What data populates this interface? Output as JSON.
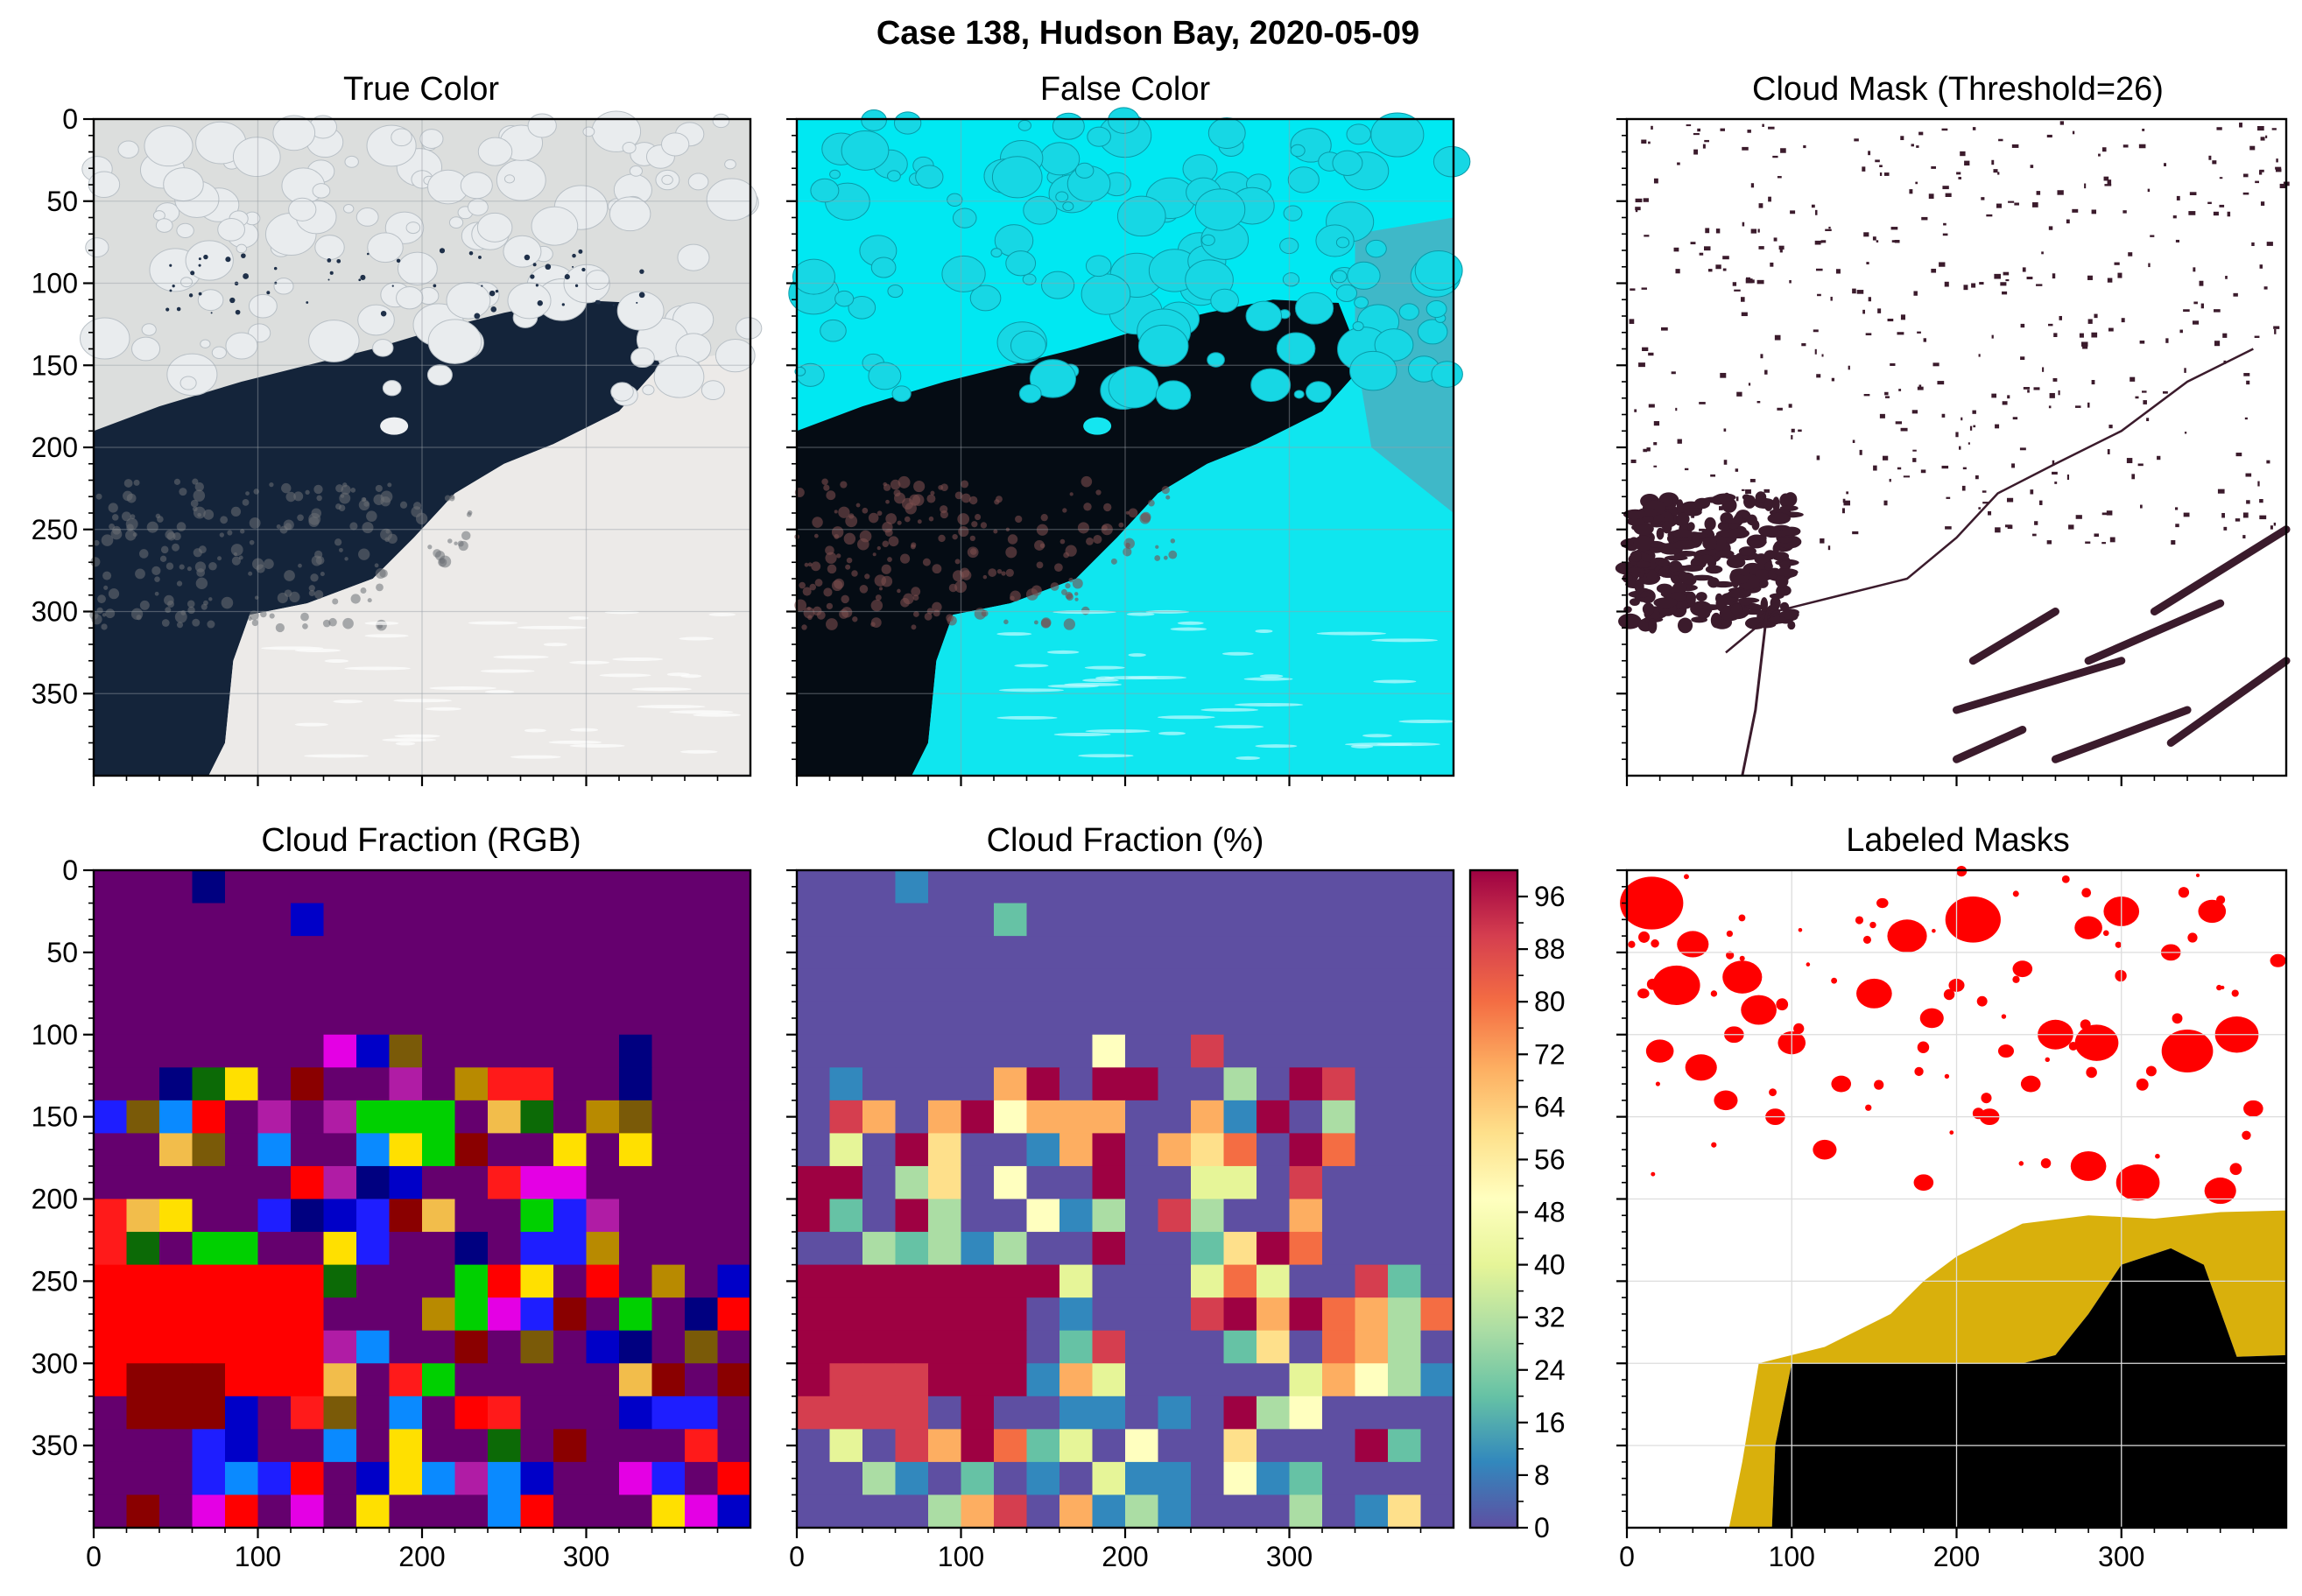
{
  "figure": {
    "title": "Case 138, Hudson Bay, 2020-05-09"
  },
  "chart_data": [
    {
      "id": "true-color",
      "type": "image",
      "title": "True Color",
      "xlim": [
        0,
        400
      ],
      "ylim": [
        400,
        0
      ],
      "xticks": [
        0,
        100,
        200,
        300
      ],
      "yticks": [
        0,
        50,
        100,
        150,
        200,
        250,
        300,
        350
      ],
      "show_xticklabels": false,
      "show_yticklabels": true,
      "grid": true
    },
    {
      "id": "false-color",
      "type": "image",
      "title": "False Color",
      "xlim": [
        0,
        400
      ],
      "ylim": [
        400,
        0
      ],
      "xticks": [
        0,
        100,
        200,
        300
      ],
      "yticks": [
        0,
        50,
        100,
        150,
        200,
        250,
        300,
        350
      ],
      "show_xticklabels": false,
      "show_yticklabels": false,
      "grid": true
    },
    {
      "id": "cloud-mask",
      "type": "image",
      "title": "Cloud Mask (Threshold=26)",
      "xlim": [
        0,
        400
      ],
      "ylim": [
        400,
        0
      ],
      "xticks": [
        0,
        100,
        200,
        300
      ],
      "yticks": [
        0,
        50,
        100,
        150,
        200,
        250,
        300,
        350
      ],
      "show_xticklabels": false,
      "show_yticklabels": false,
      "grid": false
    },
    {
      "id": "cloud-fraction-rgb",
      "type": "heatmap",
      "title": "Cloud Fraction (RGB)",
      "xlim": [
        0,
        400
      ],
      "ylim": [
        400,
        0
      ],
      "block_size": 20,
      "xticks": [
        0,
        100,
        200,
        300
      ],
      "yticks": [
        0,
        50,
        100,
        150,
        200,
        250,
        300,
        350
      ],
      "show_xticklabels": true,
      "show_yticklabels": true,
      "grid": false
    },
    {
      "id": "cloud-fraction-pct",
      "type": "heatmap",
      "title": "Cloud Fraction (%)",
      "xlim": [
        0,
        400
      ],
      "ylim": [
        400,
        0
      ],
      "block_size": 20,
      "xticks": [
        0,
        100,
        200,
        300
      ],
      "yticks": [
        0,
        50,
        100,
        150,
        200,
        250,
        300,
        350
      ],
      "show_xticklabels": true,
      "show_yticklabels": false,
      "grid": false,
      "colorbar": {
        "cmap": "Spectral_r",
        "range": [
          0,
          100
        ],
        "ticks": [
          0,
          8,
          16,
          24,
          32,
          40,
          48,
          56,
          64,
          72,
          80,
          88,
          96
        ]
      }
    },
    {
      "id": "labeled-masks",
      "type": "image",
      "title": "Labeled Masks",
      "xlim": [
        0,
        400
      ],
      "ylim": [
        400,
        0
      ],
      "xticks": [
        0,
        100,
        200,
        300
      ],
      "yticks": [
        0,
        50,
        100,
        150,
        200,
        250,
        300,
        350
      ],
      "show_xticklabels": true,
      "show_yticklabels": false,
      "grid": true
    }
  ],
  "palette": {
    "rgb_classes": [
      "#65006e",
      "#000080",
      "#0000c8",
      "#0a8aff",
      "#e400e4",
      "#b01ca5",
      "#0c6a06",
      "#00d000",
      "#ffe000",
      "#f2bd4b",
      "#b88a00",
      "#7a5a08",
      "#ff0000",
      "#8a0000",
      "#ff1a1a",
      "#1e1eff"
    ],
    "spectral_r": [
      "#5e4fa2",
      "#3288bd",
      "#66c2a5",
      "#abdda4",
      "#e6f598",
      "#ffffbf",
      "#fee08b",
      "#fdae61",
      "#f46d43",
      "#d53e4f",
      "#9e0142"
    ],
    "mask_fill": "#3b1b2c",
    "ice_floe": "#ff0000",
    "fast_ice": "#d9b00c",
    "land": "#000000",
    "sea": "#14243a",
    "cyan_ice": "#00e8f2"
  }
}
